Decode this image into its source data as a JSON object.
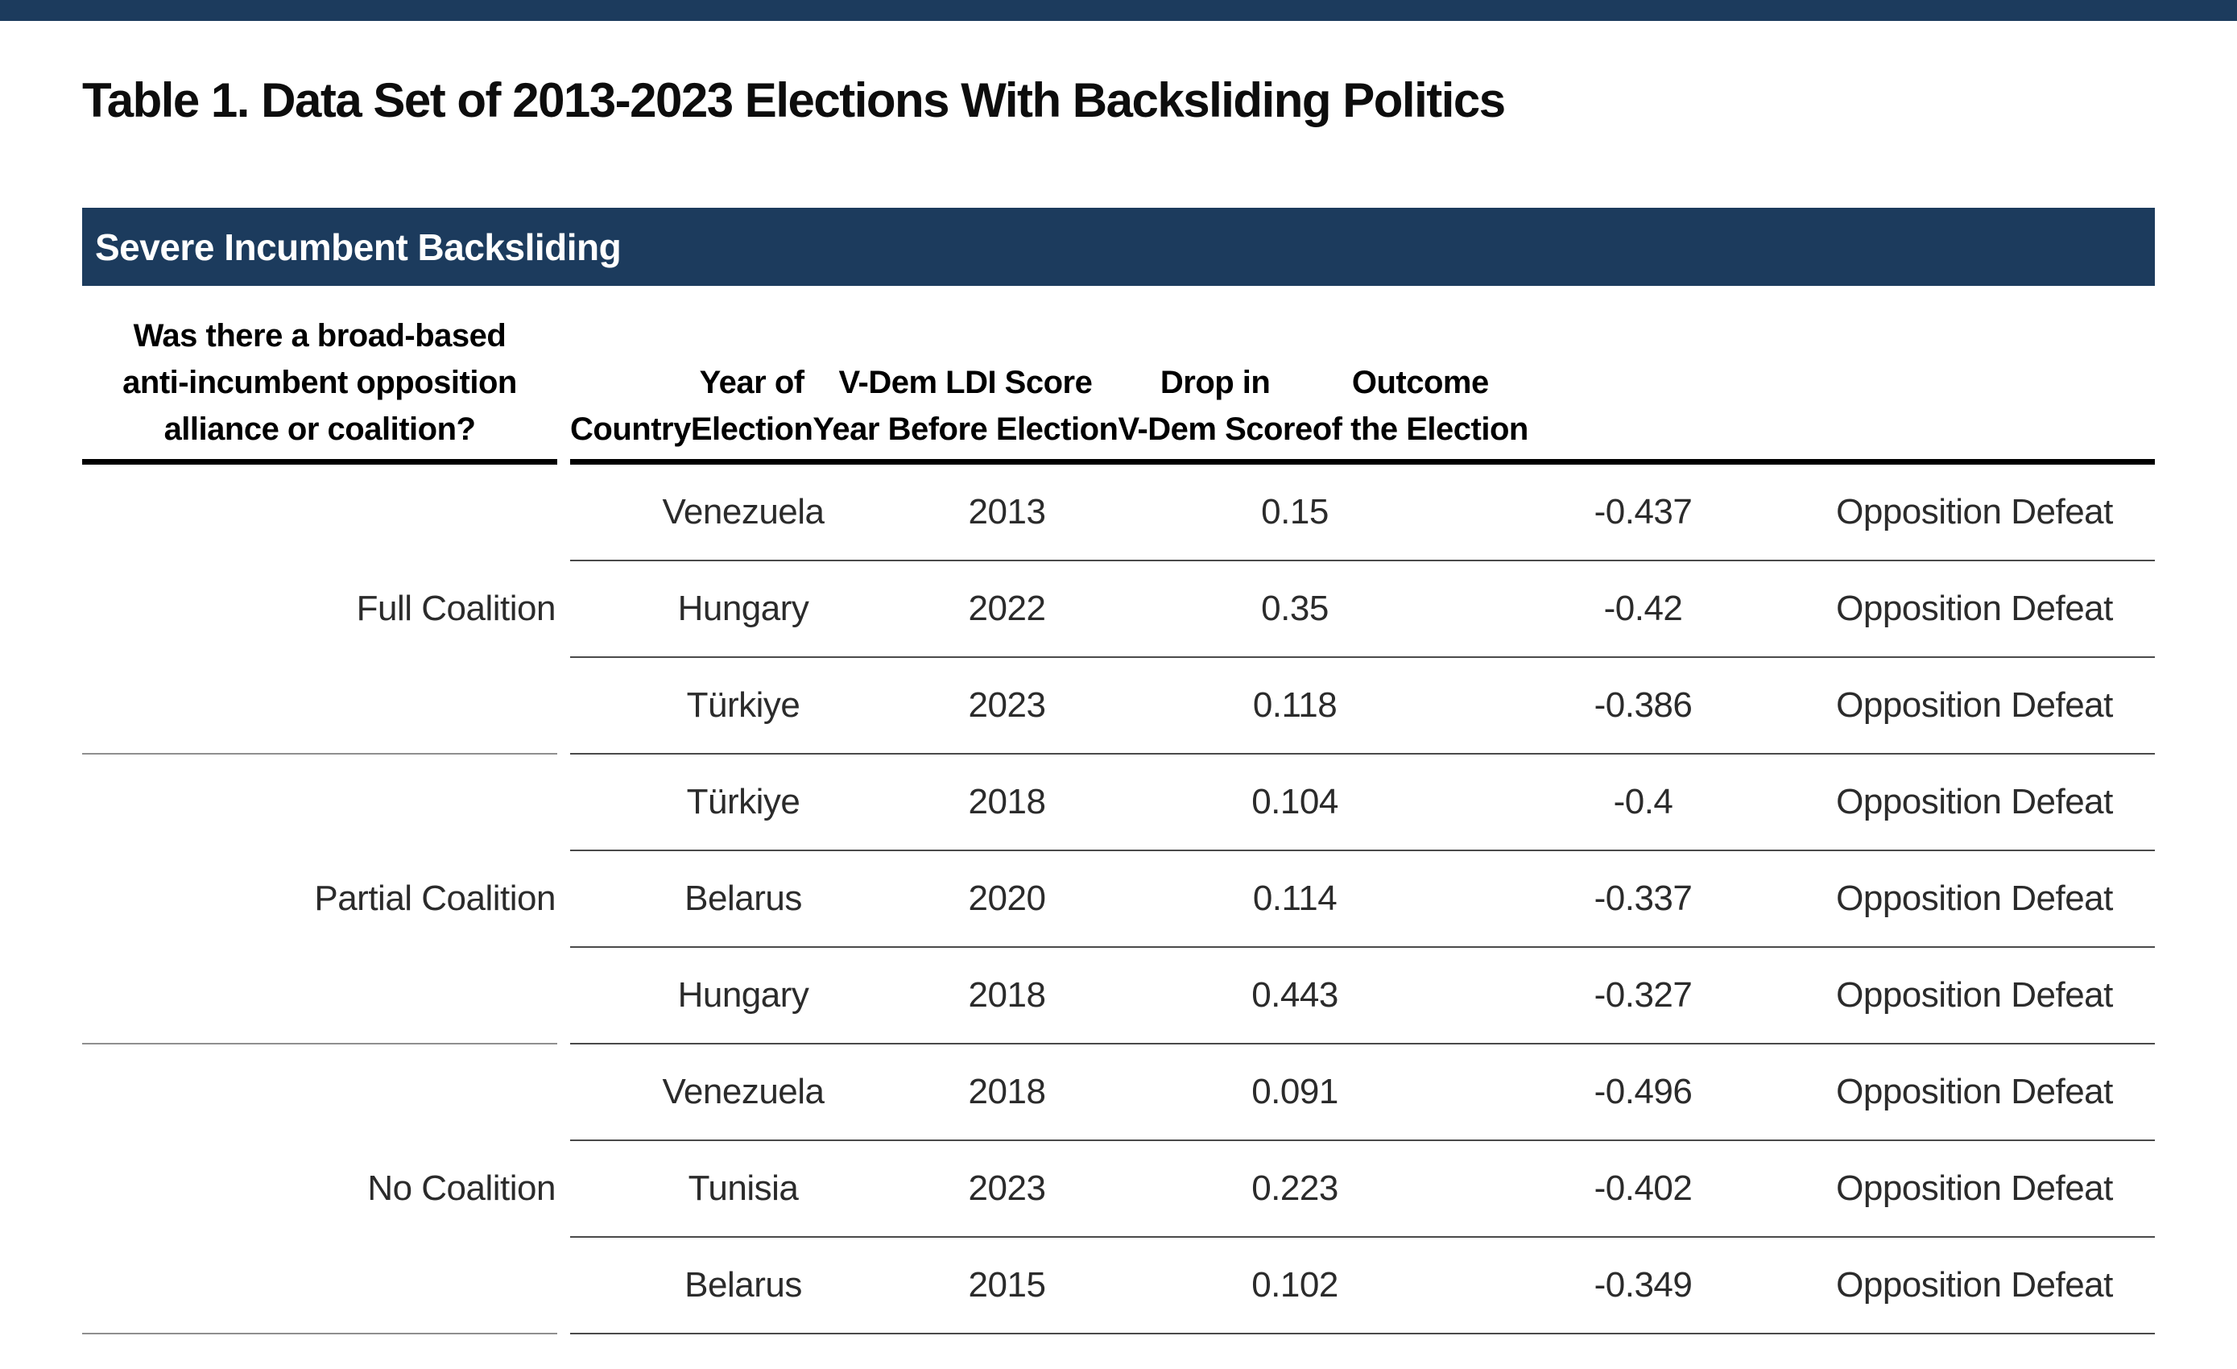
{
  "page": {
    "title": "Table 1. Data Set of 2013-2023 Elections With Backsliding Politics"
  },
  "band": {
    "label": "Severe Incumbent Backsliding"
  },
  "colors": {
    "navy": "#1C3B5D",
    "header_rule": "#000000",
    "row_rule": "#4a4a4a",
    "group_rule": "#8f8f8f"
  },
  "table": {
    "col1_header_lines": [
      "Was there a broad-based",
      "anti-incumbent opposition",
      "alliance or coalition?"
    ],
    "columns": [
      {
        "key": "country",
        "lines": [
          "Country"
        ]
      },
      {
        "key": "year",
        "lines": [
          "Year of",
          "Election"
        ]
      },
      {
        "key": "ldi_score",
        "lines": [
          "V-Dem LDI Score",
          "Year Before Election"
        ]
      },
      {
        "key": "drop",
        "lines": [
          "Drop in",
          "V-Dem Score"
        ]
      },
      {
        "key": "outcome",
        "lines": [
          "Outcome",
          "of the Election"
        ]
      }
    ],
    "groups": [
      {
        "label": "Full Coalition",
        "rows": [
          [
            "Venezuela",
            "2013",
            "0.15",
            "-0.437",
            "Opposition Defeat"
          ],
          [
            "Hungary",
            "2022",
            "0.35",
            "-0.42",
            "Opposition Defeat"
          ],
          [
            "Türkiye",
            "2023",
            "0.118",
            "-0.386",
            "Opposition Defeat"
          ]
        ]
      },
      {
        "label": "Partial Coalition",
        "rows": [
          [
            "Türkiye",
            "2018",
            "0.104",
            "-0.4",
            "Opposition Defeat"
          ],
          [
            "Belarus",
            "2020",
            "0.114",
            "-0.337",
            "Opposition Defeat"
          ],
          [
            "Hungary",
            "2018",
            "0.443",
            "-0.327",
            "Opposition Defeat"
          ]
        ]
      },
      {
        "label": "No Coalition",
        "rows": [
          [
            "Venezuela",
            "2018",
            "0.091",
            "-0.496",
            "Opposition Defeat"
          ],
          [
            "Tunisia",
            "2023",
            "0.223",
            "-0.402",
            "Opposition Defeat"
          ],
          [
            "Belarus",
            "2015",
            "0.102",
            "-0.349",
            "Opposition Defeat"
          ]
        ]
      }
    ]
  }
}
